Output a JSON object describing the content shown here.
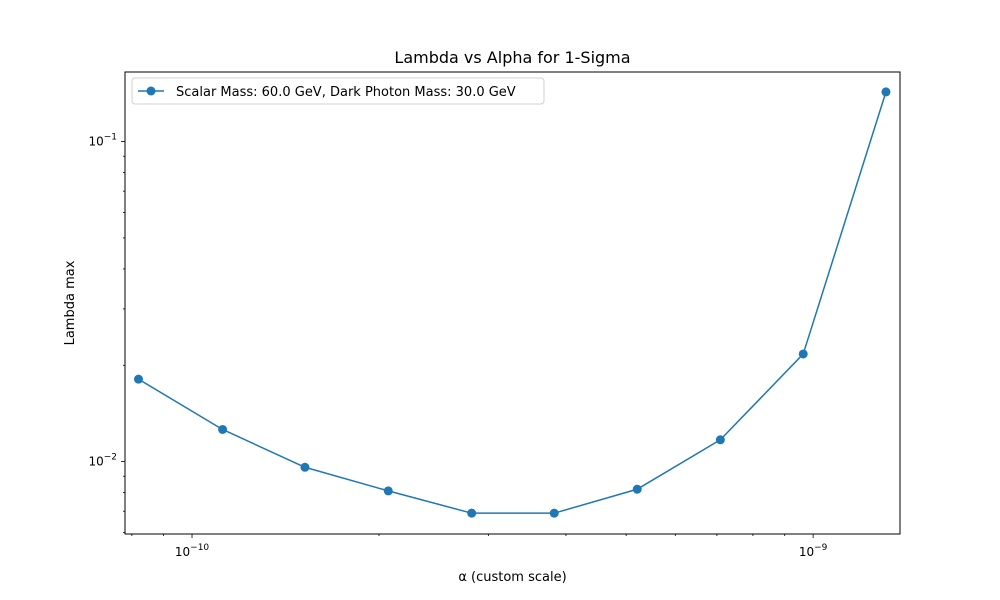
{
  "chart_data": {
    "type": "line",
    "title": "Lambda vs Alpha for 1-Sigma",
    "xlabel": "α (custom scale)",
    "ylabel": "Lambda max",
    "xscale": "log",
    "yscale": "log",
    "xlim": [
      7.8e-11,
      1.38e-09
    ],
    "ylim": [
      0.00594,
      0.165
    ],
    "grid": false,
    "legend_position": "top-left",
    "x_tick_labels": [
      {
        "value": 1e-10,
        "base": "10",
        "exp": "−10"
      },
      {
        "value": 1e-09,
        "base": "10",
        "exp": "−9"
      }
    ],
    "y_tick_labels": [
      {
        "value": 0.01,
        "base": "10",
        "exp": "−2"
      },
      {
        "value": 0.1,
        "base": "10",
        "exp": "−1"
      }
    ],
    "x_minor_ticks": [
      8e-11,
      9e-11,
      2e-10,
      3e-10,
      4e-10,
      5e-10,
      6e-10,
      7e-10,
      8e-10,
      9e-10
    ],
    "y_minor_ticks": [
      0.006,
      0.007,
      0.008,
      0.009,
      0.02,
      0.03,
      0.04,
      0.05,
      0.06,
      0.07,
      0.08,
      0.09
    ],
    "series": [
      {
        "name": "Scalar Mass: 60.0 GeV, Dark Photon Mass: 30.0 GeV",
        "color": "#1f77b4",
        "marker": "circle",
        "x": [
          8.2e-11,
          1.12e-10,
          1.52e-10,
          2.07e-10,
          2.82e-10,
          3.83e-10,
          5.21e-10,
          7.09e-10,
          9.64e-10,
          1.31e-09
        ],
        "y": [
          0.0181,
          0.0126,
          0.0096,
          0.0081,
          0.0069,
          0.0069,
          0.0082,
          0.0117,
          0.0217,
          0.143
        ]
      }
    ]
  }
}
